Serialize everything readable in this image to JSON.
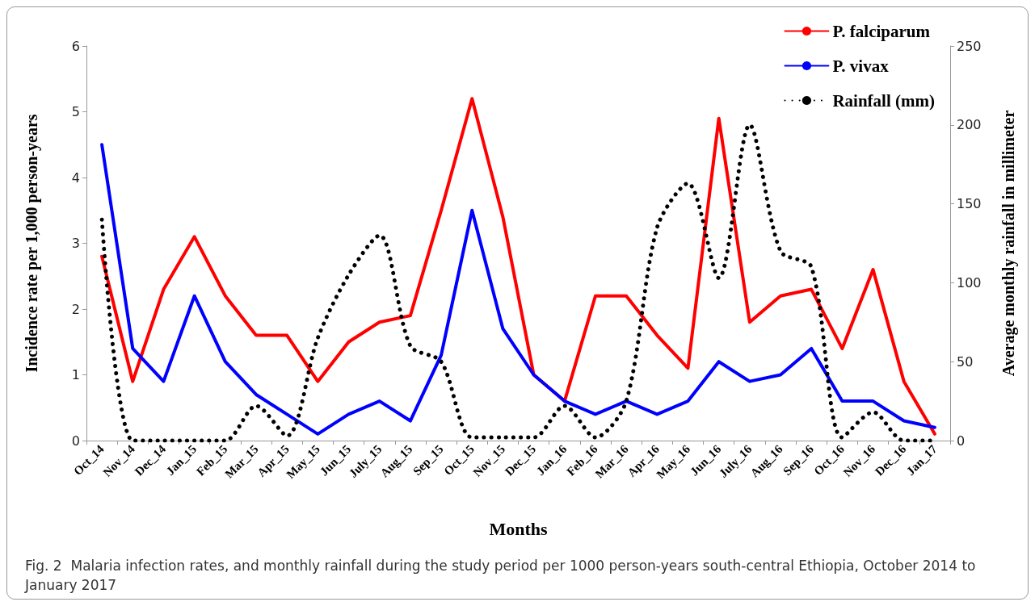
{
  "chart_data": {
    "type": "line",
    "xlabel": "Months",
    "ylabel": "Incidence rate per 1,000 person-years",
    "y2label": "Average monthly rainfall in millimeter",
    "categories": [
      "Oct_14",
      "Nov_14",
      "Dec_14",
      "Jan_15",
      "Feb_15",
      "Mar_15",
      "Apr_15",
      "May_15",
      "Jun_15",
      "July_15",
      "Aug_15",
      "Sep_15",
      "Oct_15",
      "Nov_15",
      "Dec_15",
      "Jan_16",
      "Feb_16",
      "Mar_16",
      "Apr_16",
      "May_16",
      "Jun_16",
      "July_16",
      "Aug_16",
      "Sep_16",
      "Oct_16",
      "Nov_16",
      "Dec_16",
      "Jan_17"
    ],
    "series": [
      {
        "name": "P. falciparum",
        "color": "#ff0000",
        "values": [
          2.8,
          0.9,
          2.3,
          3.1,
          2.2,
          1.6,
          1.6,
          0.9,
          1.5,
          1.8,
          1.9,
          3.5,
          5.2,
          3.4,
          1.0,
          0.6,
          2.2,
          2.2,
          1.6,
          1.1,
          4.9,
          1.8,
          2.2,
          2.3,
          1.4,
          2.6,
          0.9,
          0.1
        ]
      },
      {
        "name": "P. vivax",
        "color": "#0000ff",
        "values": [
          4.5,
          1.4,
          0.9,
          2.2,
          1.2,
          0.7,
          0.4,
          0.1,
          0.4,
          0.6,
          0.3,
          1.3,
          3.5,
          1.7,
          1.0,
          0.6,
          0.4,
          0.6,
          0.4,
          0.6,
          1.2,
          0.9,
          1.0,
          1.4,
          0.6,
          0.6,
          0.3,
          0.2
        ]
      },
      {
        "name": "Rainfall (mm)",
        "color": "#000000",
        "axis": "y2",
        "line_style": "dotted",
        "values": [
          140,
          0,
          0,
          0,
          0,
          22,
          3,
          65,
          105,
          130,
          60,
          50,
          2,
          2,
          2,
          22,
          2,
          25,
          135,
          163,
          103,
          200,
          120,
          110,
          2,
          18,
          0,
          0
        ]
      }
    ],
    "ylim": [
      0,
      6
    ],
    "yticks": [
      0,
      1,
      2,
      3,
      4,
      5,
      6
    ],
    "y2lim": [
      0,
      250
    ],
    "y2ticks": [
      0,
      50,
      100,
      150,
      200,
      250
    ],
    "grid": false,
    "legend": "top right",
    "marker": "none",
    "line_style": "solid",
    "annotations": [
      "Fig. 2  Malaria infection rates, and monthly rainfall during the study period per 1000 person-years south-central Ethiopia, October 2014 to January 2017"
    ]
  }
}
